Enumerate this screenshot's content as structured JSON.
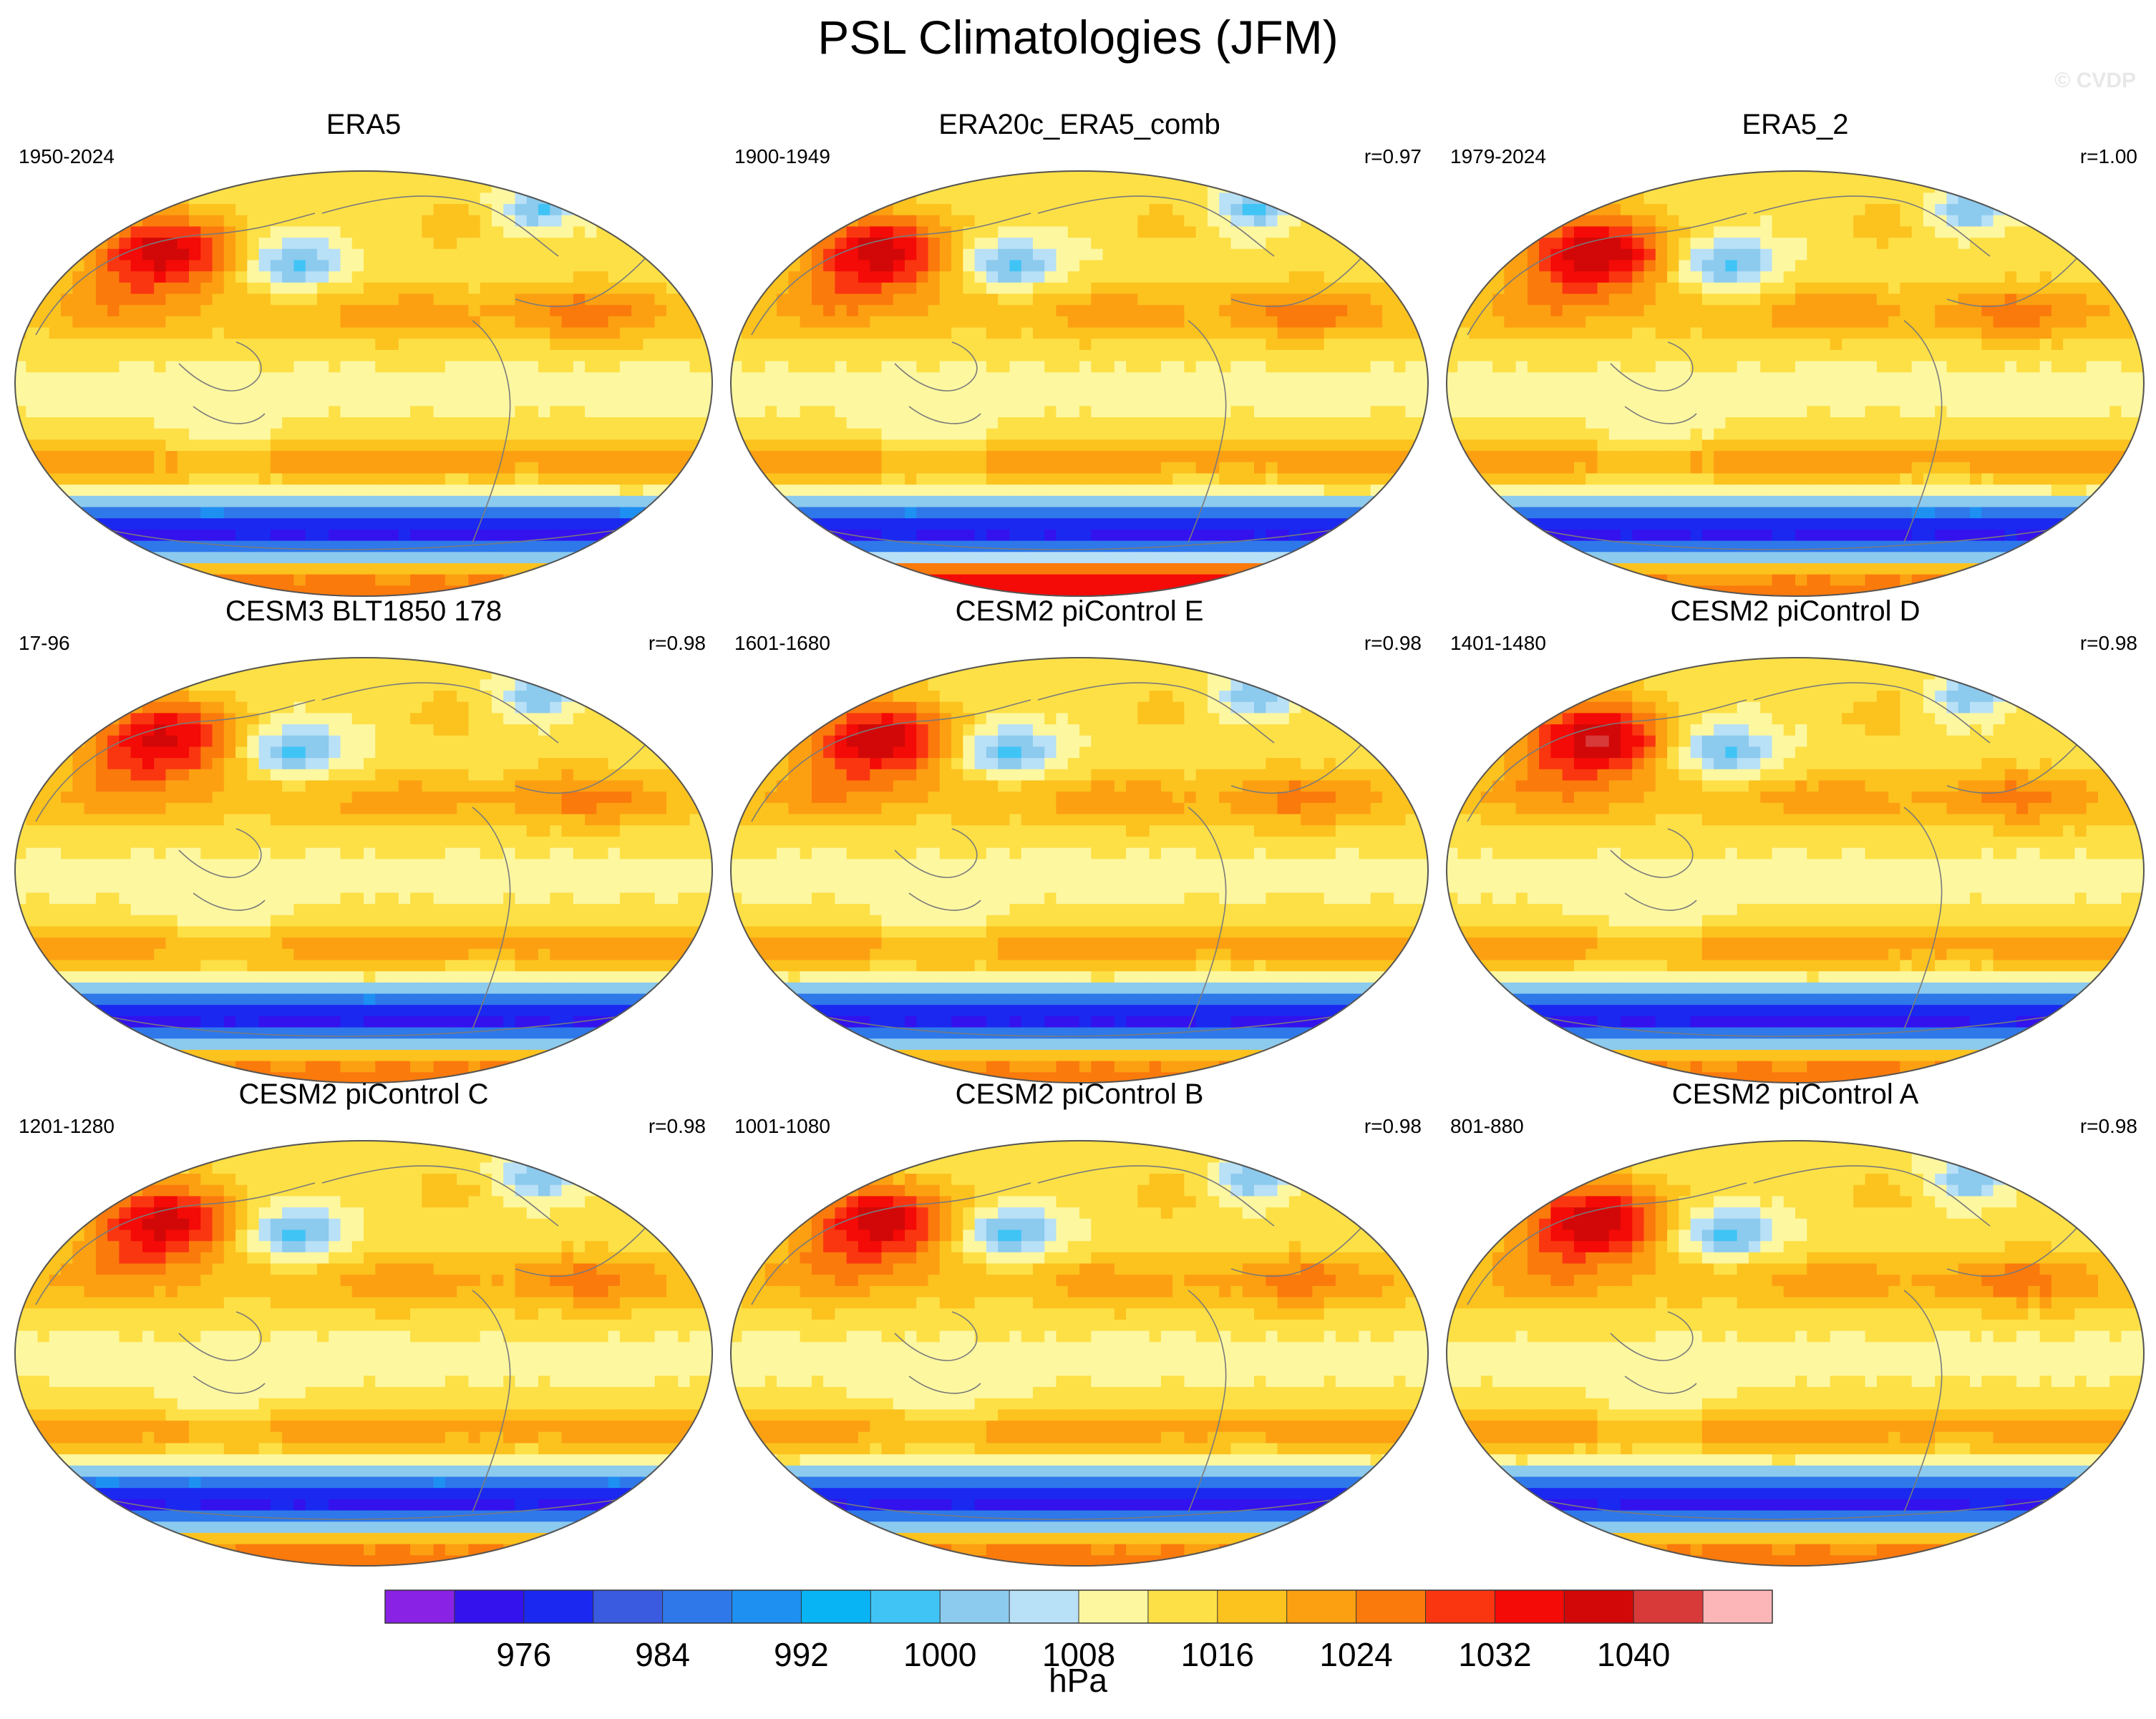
{
  "title": "PSL Climatologies (JFM)",
  "watermark": "© CVDP",
  "panels": [
    {
      "title": "ERA5",
      "years": "1950-2024",
      "r": ""
    },
    {
      "title": "ERA20c_ERA5_comb",
      "years": "1900-1949",
      "r": "r=0.97"
    },
    {
      "title": "ERA5_2",
      "years": "1979-2024",
      "r": "r=1.00"
    },
    {
      "title": "CESM3 BLT1850 178",
      "years": "17-96",
      "r": "r=0.98"
    },
    {
      "title": "CESM2 piControl E",
      "years": "1601-1680",
      "r": "r=0.98"
    },
    {
      "title": "CESM2 piControl D",
      "years": "1401-1480",
      "r": "r=0.98"
    },
    {
      "title": "CESM2 piControl C",
      "years": "1201-1280",
      "r": "r=0.98"
    },
    {
      "title": "CESM2 piControl B",
      "years": "1001-1080",
      "r": "r=0.98"
    },
    {
      "title": "CESM2 piControl A",
      "years": "801-880",
      "r": "r=0.98"
    }
  ],
  "chart_data": {
    "type": "heatmap",
    "title": "PSL Climatologies (JFM)",
    "projection": "robinson",
    "colorbar": {
      "unit": "hPa",
      "levels": [
        972,
        976,
        980,
        984,
        988,
        992,
        996,
        1000,
        1004,
        1008,
        1012,
        1016,
        1020,
        1024,
        1028,
        1032,
        1036,
        1040,
        1044
      ],
      "tick_labels": [
        "976",
        "984",
        "992",
        "1000",
        "1008",
        "1016",
        "1024",
        "1032",
        "1040"
      ],
      "colors": [
        "#8a22e6",
        "#3312ee",
        "#1a28f0",
        "#3a5ae0",
        "#2e78ea",
        "#1e90f2",
        "#08b4f4",
        "#40c4f6",
        "#8ccaee",
        "#b8e0f6",
        "#fdf7a0",
        "#fde046",
        "#fcc21e",
        "#fca012",
        "#fb7a0c",
        "#fa3610",
        "#f40a06",
        "#d20808",
        "#d83a3a",
        "#fcb6b8"
      ]
    },
    "field_features_hPa": {
      "siberian_high": 1036,
      "aleutian_low": 1000,
      "icelandic_low": 1000,
      "subtropical_highs": 1024,
      "southern_ocean_trough": 984
    }
  }
}
